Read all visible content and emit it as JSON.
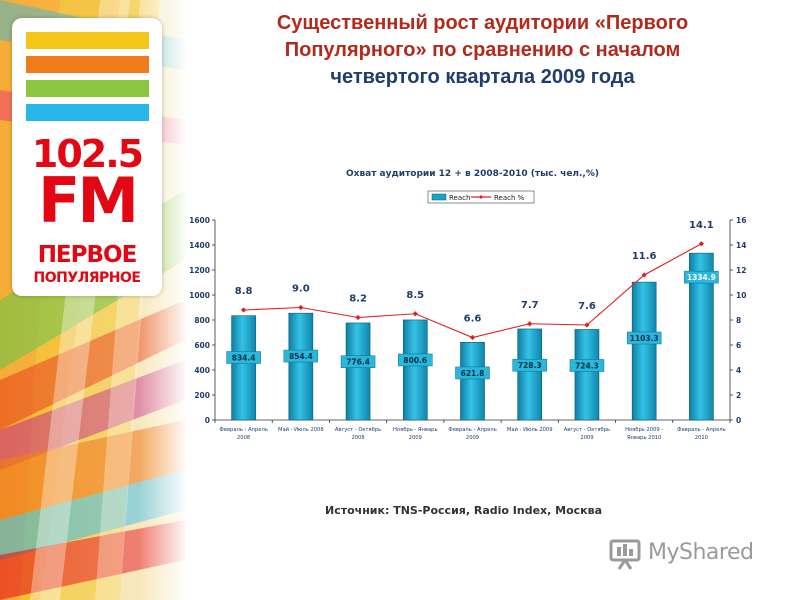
{
  "headline": {
    "line1": "Существенный рост аудитории «Первого",
    "line2": "Популярного» по сравнению с началом",
    "line3": "четвертого квартала 2009 года"
  },
  "logo": {
    "frequency": "102.5",
    "band": "FM",
    "name_line1": "ПЕРВОЕ",
    "name_line2": "ПОПУЛЯРНОЕ",
    "stripe_colors": [
      "#f5c518",
      "#ef7b1a",
      "#8cc63f",
      "#29b6e8"
    ],
    "brand_color": "#e30613"
  },
  "chart_data": {
    "type": "bar",
    "title": "Охват аудитории 12 + в 2008-2010 (тыс. чел.,%)",
    "categories": [
      [
        "Февраль - Апрель",
        "2008"
      ],
      [
        "Май - Июль 2008"
      ],
      [
        "Август - Октябрь",
        "2008"
      ],
      [
        "Ноябрь - Январь",
        "2009"
      ],
      [
        "Февраль - Апрель",
        "2009"
      ],
      [
        "Май - Июль 2009"
      ],
      [
        "Август - Октябрь",
        "2009"
      ],
      [
        "Ноябрь 2009 -",
        "Январь 2010"
      ],
      [
        "Февраль - Апрель",
        "2010"
      ]
    ],
    "series": [
      {
        "name": "Reach",
        "type": "bar",
        "axis": "left",
        "color": "#1aa3c8",
        "values": [
          834.4,
          854.4,
          776.4,
          800.6,
          621.8,
          728.3,
          724.3,
          1103.3,
          1334.9
        ],
        "labels": [
          "834.4",
          "854.4",
          "776.4",
          "800.6",
          "621.8",
          "728.3",
          "724.3",
          "1103.3",
          "1334.9"
        ]
      },
      {
        "name": "Reach %",
        "type": "line",
        "axis": "right",
        "color": "#e02020",
        "values": [
          8.8,
          9.0,
          8.2,
          8.5,
          6.6,
          7.7,
          7.6,
          11.6,
          14.1
        ],
        "labels": [
          "8.8",
          "9.0",
          "8.2",
          "8.5",
          "6.6",
          "7.7",
          "7.6",
          "11.6",
          "14.1"
        ]
      }
    ],
    "ylim_left": [
      0,
      1600
    ],
    "yticks_left": [
      0,
      200,
      400,
      600,
      800,
      1000,
      1200,
      1400,
      1600
    ],
    "ylim_right": [
      0,
      16
    ],
    "yticks_right": [
      0,
      2,
      4,
      6,
      8,
      10,
      12,
      14,
      16
    ],
    "legend_position": "top-center",
    "grid": false
  },
  "source": "Источник: TNS-Россия, Radio Index, Москва",
  "watermark": {
    "text": "MyShared",
    "color": "#9a9a9a"
  }
}
